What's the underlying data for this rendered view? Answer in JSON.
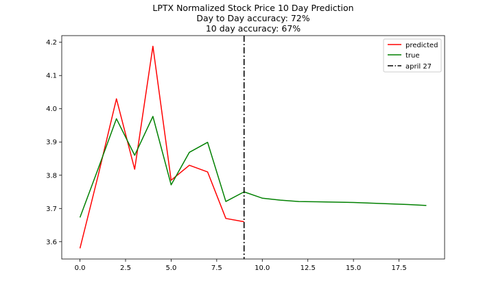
{
  "chart_data": {
    "type": "line",
    "title_lines": [
      "LPTX Normalized Stock Price 10 Day Prediction",
      "Day to Day accuracy: 72%",
      "10 day accuracy: 67%"
    ],
    "xlabel": "",
    "ylabel": "",
    "xlim": [
      -1,
      20
    ],
    "ylim": [
      3.548,
      4.22
    ],
    "x_ticks": [
      0.0,
      2.5,
      5.0,
      7.5,
      10.0,
      12.5,
      15.0,
      17.5
    ],
    "x_tick_labels": [
      "0.0",
      "2.5",
      "5.0",
      "7.5",
      "10.0",
      "12.5",
      "15.0",
      "17.5"
    ],
    "y_ticks": [
      3.6,
      3.7,
      3.8,
      3.9,
      4.0,
      4.1,
      4.2
    ],
    "y_tick_labels": [
      "3.6",
      "3.7",
      "3.8",
      "3.9",
      "4.0",
      "4.1",
      "4.2"
    ],
    "grid": false,
    "legend_position": "upper right",
    "series": [
      {
        "name": "predicted",
        "color": "#ff0000",
        "x": [
          0,
          1,
          2,
          3,
          4,
          5,
          6,
          7,
          8,
          9
        ],
        "y": [
          3.58,
          3.8,
          4.03,
          3.818,
          4.188,
          3.785,
          3.83,
          3.81,
          3.67,
          3.66
        ]
      },
      {
        "name": "true",
        "color": "#008000",
        "x": [
          0,
          1,
          2,
          3,
          4,
          5,
          6,
          7,
          8,
          9,
          10,
          11,
          12,
          13,
          14,
          15,
          16,
          17,
          18,
          19
        ],
        "y": [
          3.673,
          3.82,
          3.97,
          3.86,
          3.977,
          3.771,
          3.869,
          3.899,
          3.721,
          3.75,
          3.731,
          3.725,
          3.721,
          3.72,
          3.719,
          3.718,
          3.716,
          3.714,
          3.712,
          3.709
        ]
      }
    ],
    "vline": {
      "x": 9,
      "name": "april 27",
      "color": "#000000",
      "style": "dash-dot"
    }
  }
}
